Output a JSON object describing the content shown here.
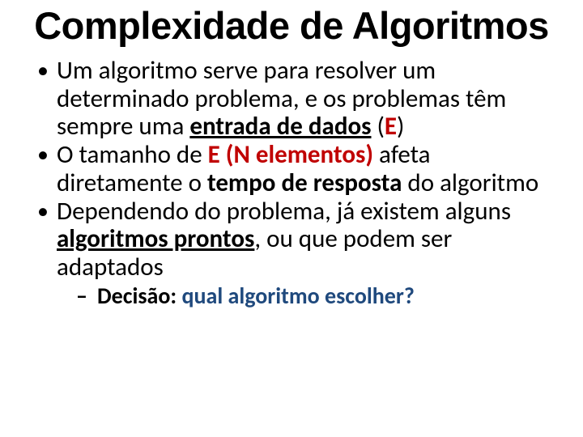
{
  "title": "Complexidade de Algoritmos",
  "bullet1": {
    "t1": "Um algoritmo serve para resolver um determinado problema, e os problemas têm sempre uma ",
    "t2": "entrada de dados",
    "t3": " (",
    "t4": "E",
    "t5": ")"
  },
  "bullet2": {
    "t1": "O tamanho de ",
    "t2": "E (N elementos)",
    "t3": " afeta diretamente o ",
    "t4": "tempo de resposta",
    "t5": " do algoritmo"
  },
  "bullet3": {
    "t1": "Dependendo do problema, já existem alguns ",
    "t2": "algoritmos prontos",
    "t3": ", ou que podem ser adaptados"
  },
  "subbullet": {
    "t1": "Decisão: ",
    "t2": "qual algoritmo escolher?"
  },
  "colors": {
    "red": "#c00000",
    "blue": "#1f497d",
    "text": "#000000",
    "bg": "#ffffff"
  },
  "fonts": {
    "title_family": "Arial Black",
    "body_family": "Calibri",
    "title_size_pt": 40,
    "body_size_pt": 28,
    "sub_size_pt": 24
  }
}
